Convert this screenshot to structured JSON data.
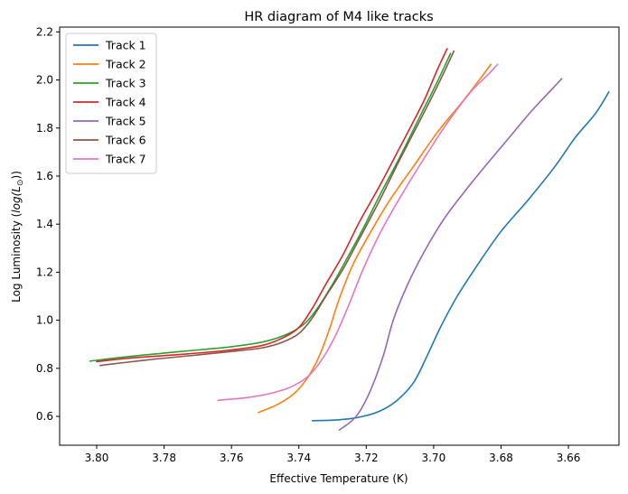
{
  "chart_data": {
    "type": "line",
    "title": "HR diagram of M4 like tracks",
    "xlabel": "Effective Temperature (K)",
    "ylabel_prefix": "Log Luminosity (",
    "ylabel_math": "log(L",
    "ylabel_sub": "⊙",
    "ylabel_suffix": "))",
    "xlim": [
      3.811,
      3.645
    ],
    "ylim": [
      0.48,
      2.22
    ],
    "x_inverted": true,
    "xticks": [
      3.8,
      3.78,
      3.76,
      3.74,
      3.72,
      3.7,
      3.68,
      3.66
    ],
    "xtick_labels": [
      "3.80",
      "3.78",
      "3.76",
      "3.74",
      "3.72",
      "3.70",
      "3.68",
      "3.66"
    ],
    "yticks": [
      0.6,
      0.8,
      1.0,
      1.2,
      1.4,
      1.6,
      1.8,
      2.0,
      2.2
    ],
    "ytick_labels": [
      "0.6",
      "0.8",
      "1.0",
      "1.2",
      "1.4",
      "1.6",
      "1.8",
      "2.0",
      "2.2"
    ],
    "grid": false,
    "legend": "top-left",
    "series": [
      {
        "name": "Track 1",
        "color": "#1f77b4",
        "x": [
          3.736,
          3.728,
          3.722,
          3.716,
          3.711,
          3.706,
          3.702,
          3.698,
          3.693,
          3.687,
          3.68,
          3.672,
          3.664,
          3.658,
          3.652,
          3.648
        ],
        "y": [
          0.582,
          0.586,
          0.597,
          0.622,
          0.665,
          0.74,
          0.85,
          0.97,
          1.1,
          1.23,
          1.37,
          1.5,
          1.64,
          1.76,
          1.86,
          1.95
        ]
      },
      {
        "name": "Track 2",
        "color": "#ff7f0e",
        "x": [
          3.752,
          3.746,
          3.741,
          3.737,
          3.734,
          3.731,
          3.728,
          3.724,
          3.719,
          3.713,
          3.706,
          3.699,
          3.692,
          3.687,
          3.683
        ],
        "y": [
          0.616,
          0.652,
          0.7,
          0.77,
          0.85,
          0.96,
          1.09,
          1.23,
          1.36,
          1.5,
          1.64,
          1.78,
          1.9,
          1.99,
          2.065
        ]
      },
      {
        "name": "Track 3",
        "color": "#2ca02c",
        "x": [
          3.802,
          3.79,
          3.775,
          3.76,
          3.75,
          3.743,
          3.738,
          3.734,
          3.73,
          3.726,
          3.721,
          3.716,
          3.71,
          3.704,
          3.699,
          3.695
        ],
        "y": [
          0.83,
          0.85,
          0.87,
          0.89,
          0.912,
          0.945,
          0.99,
          1.06,
          1.15,
          1.25,
          1.38,
          1.52,
          1.68,
          1.85,
          1.99,
          2.11
        ]
      },
      {
        "name": "Track 4",
        "color": "#d62728",
        "x": [
          3.8,
          3.79,
          3.775,
          3.761,
          3.751,
          3.745,
          3.74,
          3.736,
          3.732,
          3.727,
          3.722,
          3.716,
          3.71,
          3.703,
          3.699,
          3.696
        ],
        "y": [
          0.828,
          0.843,
          0.858,
          0.875,
          0.895,
          0.925,
          0.97,
          1.05,
          1.15,
          1.27,
          1.41,
          1.56,
          1.72,
          1.91,
          2.04,
          2.13
        ]
      },
      {
        "name": "Track 5",
        "color": "#9467bd",
        "x": [
          3.728,
          3.723,
          3.719,
          3.715,
          3.712,
          3.708,
          3.703,
          3.697,
          3.69,
          3.683,
          3.677,
          3.671,
          3.665,
          3.662
        ],
        "y": [
          0.543,
          0.6,
          0.7,
          0.85,
          1.0,
          1.14,
          1.28,
          1.42,
          1.55,
          1.67,
          1.77,
          1.87,
          1.96,
          2.005
        ]
      },
      {
        "name": "Track 6",
        "color": "#8c564b",
        "x": [
          3.799,
          3.785,
          3.772,
          3.76,
          3.751,
          3.745,
          3.74,
          3.736,
          3.732,
          3.727,
          3.722,
          3.716,
          3.71,
          3.703,
          3.698,
          3.694
        ],
        "y": [
          0.812,
          0.835,
          0.853,
          0.87,
          0.885,
          0.908,
          0.945,
          1.01,
          1.1,
          1.21,
          1.34,
          1.5,
          1.67,
          1.86,
          2.0,
          2.12
        ]
      },
      {
        "name": "Track 7",
        "color": "#e377c2",
        "x": [
          3.764,
          3.755,
          3.748,
          3.742,
          3.737,
          3.733,
          3.729,
          3.725,
          3.721,
          3.716,
          3.71,
          3.703,
          3.696,
          3.689,
          3.684,
          3.681
        ],
        "y": [
          0.667,
          0.679,
          0.697,
          0.725,
          0.77,
          0.84,
          0.94,
          1.07,
          1.21,
          1.36,
          1.51,
          1.67,
          1.82,
          1.95,
          2.02,
          2.065
        ]
      }
    ]
  }
}
